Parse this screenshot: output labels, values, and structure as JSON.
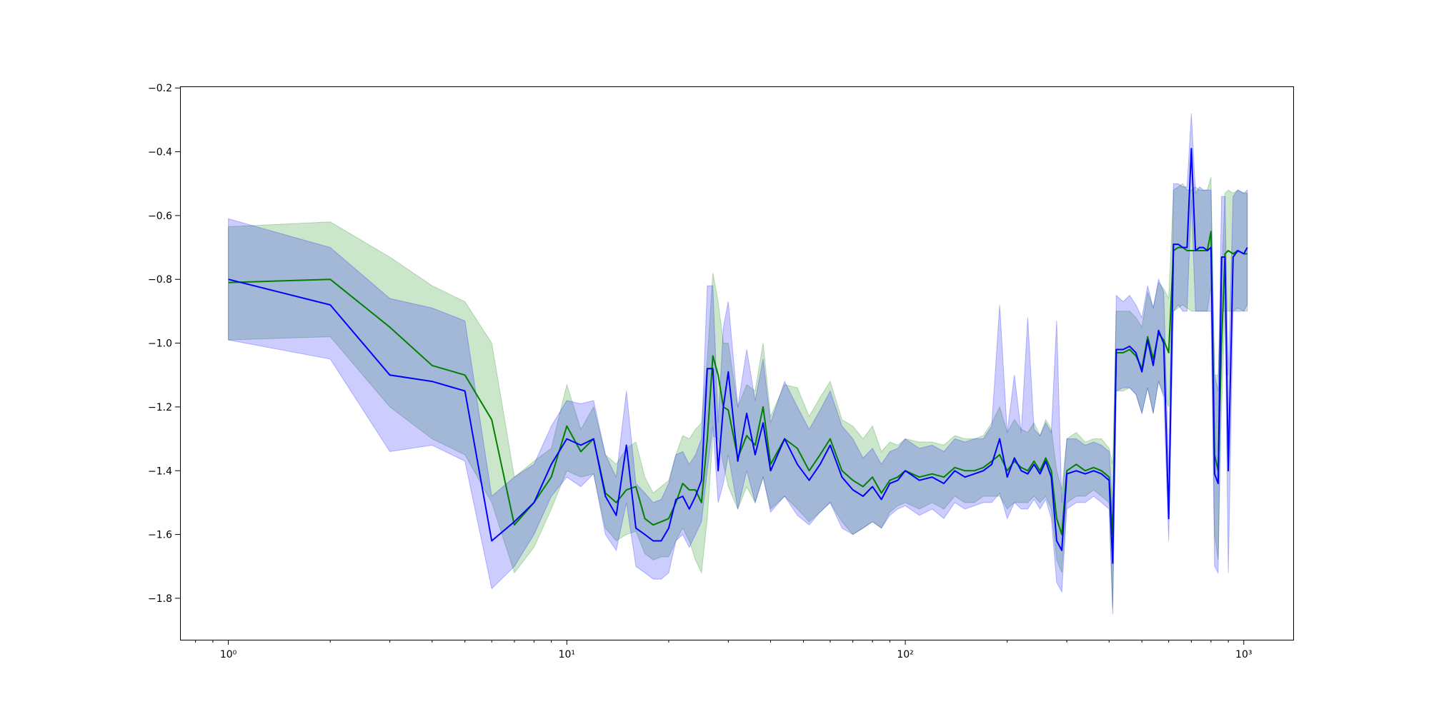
{
  "chart_data": {
    "type": "line",
    "title": "",
    "xlabel": "",
    "ylabel": "",
    "xscale": "log",
    "xlim": [
      0.72,
      1400
    ],
    "ylim": [
      -1.93,
      -0.195
    ],
    "grid": false,
    "x_ticks": [
      {
        "value": 1,
        "label": "10⁰"
      },
      {
        "value": 10,
        "label": "10¹"
      },
      {
        "value": 100,
        "label": "10²"
      },
      {
        "value": 1000,
        "label": "10³"
      }
    ],
    "y_ticks": [
      {
        "value": -0.2,
        "label": "−0.2"
      },
      {
        "value": -0.4,
        "label": "−0.4"
      },
      {
        "value": -0.6,
        "label": "−0.6"
      },
      {
        "value": -0.8,
        "label": "−0.8"
      },
      {
        "value": -1.0,
        "label": "−1.0"
      },
      {
        "value": -1.2,
        "label": "−1.2"
      },
      {
        "value": -1.4,
        "label": "−1.4"
      },
      {
        "value": -1.6,
        "label": "−1.6"
      },
      {
        "value": -1.8,
        "label": "−1.8"
      }
    ],
    "series": [
      {
        "color": "#008000",
        "band_color": "#008000",
        "band_opacity": 0.2,
        "x": [
          1,
          2,
          3,
          4,
          5,
          6,
          7,
          8,
          9,
          10,
          11,
          12,
          13,
          14,
          15,
          16,
          17,
          18,
          19,
          20,
          21,
          22,
          23,
          24,
          25,
          26,
          27,
          28,
          29,
          30,
          32,
          34,
          36,
          38,
          40,
          44,
          48,
          52,
          56,
          60,
          65,
          70,
          75,
          80,
          85,
          90,
          95,
          100,
          110,
          120,
          130,
          140,
          150,
          160,
          170,
          180,
          190,
          200,
          210,
          220,
          230,
          240,
          250,
          260,
          270,
          280,
          290,
          300,
          320,
          340,
          360,
          380,
          400,
          410,
          420,
          440,
          460,
          480,
          500,
          520,
          540,
          560,
          580,
          600,
          620,
          640,
          660,
          680,
          700,
          720,
          740,
          760,
          780,
          800,
          820,
          840,
          860,
          880,
          900,
          930,
          960,
          1000,
          1024
        ],
        "y": [
          -0.81,
          -0.8,
          -0.95,
          -1.07,
          -1.1,
          -1.24,
          -1.57,
          -1.5,
          -1.42,
          -1.26,
          -1.34,
          -1.3,
          -1.47,
          -1.5,
          -1.46,
          -1.45,
          -1.55,
          -1.57,
          -1.56,
          -1.55,
          -1.5,
          -1.44,
          -1.46,
          -1.46,
          -1.5,
          -1.3,
          -1.04,
          -1.1,
          -1.2,
          -1.21,
          -1.36,
          -1.29,
          -1.32,
          -1.2,
          -1.38,
          -1.3,
          -1.33,
          -1.4,
          -1.35,
          -1.3,
          -1.4,
          -1.43,
          -1.45,
          -1.42,
          -1.47,
          -1.43,
          -1.42,
          -1.4,
          -1.42,
          -1.41,
          -1.42,
          -1.39,
          -1.4,
          -1.4,
          -1.39,
          -1.37,
          -1.35,
          -1.4,
          -1.37,
          -1.39,
          -1.4,
          -1.37,
          -1.4,
          -1.36,
          -1.4,
          -1.55,
          -1.6,
          -1.4,
          -1.38,
          -1.4,
          -1.39,
          -1.4,
          -1.42,
          -1.6,
          -1.03,
          -1.03,
          -1.02,
          -1.04,
          -1.08,
          -0.98,
          -1.05,
          -0.97,
          -0.99,
          -1.03,
          -0.71,
          -0.7,
          -0.7,
          -0.71,
          -0.71,
          -0.71,
          -0.71,
          -0.71,
          -0.71,
          -0.65,
          -1.35,
          -1.4,
          -1.0,
          -0.72,
          -0.71,
          -0.72,
          -0.71,
          -0.72,
          -0.72
        ],
        "lower": [
          -0.99,
          -0.98,
          -1.2,
          -1.3,
          -1.35,
          -1.5,
          -1.72,
          -1.64,
          -1.52,
          -1.4,
          -1.42,
          -1.41,
          -1.58,
          -1.62,
          -1.6,
          -1.59,
          -1.66,
          -1.68,
          -1.67,
          -1.67,
          -1.62,
          -1.58,
          -1.62,
          -1.68,
          -1.72,
          -1.55,
          -1.29,
          -1.3,
          -1.38,
          -1.45,
          -1.52,
          -1.45,
          -1.5,
          -1.42,
          -1.52,
          -1.48,
          -1.52,
          -1.56,
          -1.53,
          -1.5,
          -1.56,
          -1.6,
          -1.58,
          -1.56,
          -1.58,
          -1.53,
          -1.51,
          -1.5,
          -1.52,
          -1.5,
          -1.52,
          -1.48,
          -1.5,
          -1.5,
          -1.48,
          -1.48,
          -1.48,
          -1.52,
          -1.5,
          -1.5,
          -1.5,
          -1.48,
          -1.5,
          -1.48,
          -1.52,
          -1.68,
          -1.72,
          -1.5,
          -1.48,
          -1.48,
          -1.46,
          -1.48,
          -1.5,
          -1.83,
          -1.15,
          -1.15,
          -1.14,
          -1.16,
          -1.22,
          -1.14,
          -1.22,
          -1.12,
          -1.16,
          -1.2,
          -0.9,
          -0.89,
          -0.88,
          -0.89,
          -0.9,
          -0.9,
          -0.9,
          -0.9,
          -0.9,
          -0.82,
          -1.6,
          -1.68,
          -1.2,
          -0.9,
          -0.9,
          -0.9,
          -0.89,
          -0.9,
          -0.9
        ],
        "upper": [
          -0.635,
          -0.62,
          -0.73,
          -0.82,
          -0.87,
          -1.0,
          -1.42,
          -1.37,
          -1.33,
          -1.13,
          -1.27,
          -1.2,
          -1.35,
          -1.38,
          -1.33,
          -1.31,
          -1.42,
          -1.47,
          -1.45,
          -1.43,
          -1.35,
          -1.29,
          -1.3,
          -1.27,
          -1.25,
          -1.05,
          -0.78,
          -0.87,
          -1.0,
          -1.0,
          -1.2,
          -1.13,
          -1.15,
          -1.0,
          -1.23,
          -1.13,
          -1.14,
          -1.23,
          -1.17,
          -1.12,
          -1.24,
          -1.26,
          -1.3,
          -1.26,
          -1.34,
          -1.31,
          -1.32,
          -1.3,
          -1.31,
          -1.31,
          -1.32,
          -1.29,
          -1.3,
          -1.3,
          -1.29,
          -1.25,
          -1.2,
          -1.28,
          -1.24,
          -1.27,
          -1.28,
          -1.25,
          -1.29,
          -1.24,
          -1.27,
          -1.4,
          -1.46,
          -1.3,
          -1.28,
          -1.31,
          -1.3,
          -1.3,
          -1.33,
          -1.38,
          -0.9,
          -0.9,
          -0.9,
          -0.92,
          -0.95,
          -0.84,
          -0.89,
          -0.81,
          -0.83,
          -0.86,
          -0.52,
          -0.51,
          -0.5,
          -0.52,
          -0.52,
          -0.51,
          -0.52,
          -0.52,
          -0.52,
          -0.48,
          -1.1,
          -1.1,
          -0.8,
          -0.53,
          -0.52,
          -0.53,
          -0.52,
          -0.53,
          -0.53
        ]
      },
      {
        "color": "#0000ff",
        "band_color": "#0000ff",
        "band_opacity": 0.2,
        "x": [
          1,
          2,
          3,
          4,
          5,
          6,
          7,
          8,
          9,
          10,
          11,
          12,
          13,
          14,
          15,
          16,
          17,
          18,
          19,
          20,
          21,
          22,
          23,
          24,
          25,
          26,
          27,
          28,
          29,
          30,
          32,
          34,
          36,
          38,
          40,
          44,
          48,
          52,
          56,
          60,
          65,
          70,
          75,
          80,
          85,
          90,
          95,
          100,
          110,
          120,
          130,
          140,
          150,
          160,
          170,
          180,
          190,
          200,
          210,
          220,
          230,
          240,
          250,
          260,
          270,
          280,
          290,
          300,
          320,
          340,
          360,
          380,
          400,
          410,
          420,
          440,
          460,
          480,
          500,
          520,
          540,
          560,
          580,
          600,
          620,
          640,
          660,
          680,
          700,
          720,
          740,
          760,
          780,
          800,
          820,
          840,
          860,
          880,
          900,
          930,
          960,
          1000,
          1024
        ],
        "y": [
          -0.8,
          -0.88,
          -1.1,
          -1.12,
          -1.15,
          -1.62,
          -1.56,
          -1.5,
          -1.38,
          -1.3,
          -1.32,
          -1.3,
          -1.48,
          -1.54,
          -1.32,
          -1.58,
          -1.6,
          -1.62,
          -1.62,
          -1.58,
          -1.49,
          -1.48,
          -1.52,
          -1.48,
          -1.43,
          -1.08,
          -1.08,
          -1.4,
          -1.2,
          -1.09,
          -1.37,
          -1.22,
          -1.35,
          -1.25,
          -1.4,
          -1.3,
          -1.38,
          -1.43,
          -1.38,
          -1.32,
          -1.42,
          -1.46,
          -1.48,
          -1.45,
          -1.49,
          -1.44,
          -1.43,
          -1.4,
          -1.43,
          -1.42,
          -1.44,
          -1.4,
          -1.42,
          -1.41,
          -1.4,
          -1.38,
          -1.3,
          -1.42,
          -1.36,
          -1.4,
          -1.41,
          -1.38,
          -1.41,
          -1.37,
          -1.42,
          -1.62,
          -1.65,
          -1.41,
          -1.4,
          -1.41,
          -1.4,
          -1.41,
          -1.43,
          -1.69,
          -1.02,
          -1.02,
          -1.01,
          -1.03,
          -1.09,
          -0.99,
          -1.07,
          -0.96,
          -1.0,
          -1.55,
          -0.69,
          -0.69,
          -0.7,
          -0.7,
          -0.39,
          -0.71,
          -0.7,
          -0.7,
          -0.71,
          -0.7,
          -1.41,
          -1.44,
          -0.73,
          -0.73,
          -1.4,
          -0.73,
          -0.71,
          -0.72,
          -0.7
        ],
        "lower": [
          -0.99,
          -1.05,
          -1.34,
          -1.32,
          -1.37,
          -1.77,
          -1.7,
          -1.6,
          -1.48,
          -1.42,
          -1.45,
          -1.41,
          -1.6,
          -1.65,
          -1.5,
          -1.7,
          -1.72,
          -1.74,
          -1.74,
          -1.72,
          -1.62,
          -1.6,
          -1.64,
          -1.6,
          -1.56,
          -1.4,
          -1.26,
          -1.5,
          -1.44,
          -1.35,
          -1.52,
          -1.4,
          -1.5,
          -1.42,
          -1.53,
          -1.48,
          -1.54,
          -1.57,
          -1.53,
          -1.5,
          -1.58,
          -1.6,
          -1.58,
          -1.56,
          -1.58,
          -1.54,
          -1.52,
          -1.51,
          -1.54,
          -1.52,
          -1.55,
          -1.5,
          -1.52,
          -1.51,
          -1.5,
          -1.5,
          -1.47,
          -1.55,
          -1.5,
          -1.52,
          -1.52,
          -1.49,
          -1.52,
          -1.49,
          -1.55,
          -1.75,
          -1.78,
          -1.52,
          -1.5,
          -1.5,
          -1.48,
          -1.5,
          -1.52,
          -1.85,
          -1.15,
          -1.14,
          -1.14,
          -1.16,
          -1.22,
          -1.14,
          -1.22,
          -1.12,
          -1.17,
          -1.62,
          -0.9,
          -0.88,
          -0.9,
          -0.9,
          -0.55,
          -0.9,
          -0.9,
          -0.9,
          -0.9,
          -0.9,
          -1.7,
          -1.72,
          -0.9,
          -0.9,
          -1.72,
          -0.9,
          -0.9,
          -0.9,
          -0.88
        ],
        "upper": [
          -0.61,
          -0.7,
          -0.86,
          -0.89,
          -0.93,
          -1.48,
          -1.42,
          -1.38,
          -1.26,
          -1.18,
          -1.19,
          -1.18,
          -1.35,
          -1.42,
          -1.15,
          -1.44,
          -1.47,
          -1.5,
          -1.49,
          -1.44,
          -1.35,
          -1.34,
          -1.38,
          -1.35,
          -1.3,
          -0.82,
          -0.82,
          -1.25,
          -0.95,
          -0.87,
          -1.2,
          -1.02,
          -1.18,
          -1.05,
          -1.25,
          -1.12,
          -1.2,
          -1.27,
          -1.21,
          -1.15,
          -1.26,
          -1.3,
          -1.36,
          -1.33,
          -1.38,
          -1.34,
          -1.33,
          -1.3,
          -1.33,
          -1.32,
          -1.34,
          -1.3,
          -1.31,
          -1.3,
          -1.3,
          -1.26,
          -0.88,
          -1.28,
          -1.1,
          -1.28,
          -0.92,
          -1.27,
          -1.29,
          -1.25,
          -1.28,
          -0.93,
          -1.5,
          -1.3,
          -1.3,
          -1.32,
          -1.31,
          -1.32,
          -1.34,
          -1.52,
          -0.85,
          -0.87,
          -0.85,
          -0.88,
          -0.92,
          -0.82,
          -0.89,
          -0.8,
          -0.84,
          -1.4,
          -0.5,
          -0.5,
          -0.51,
          -0.51,
          -0.28,
          -0.53,
          -0.51,
          -0.52,
          -0.52,
          -0.52,
          -1.1,
          -1.15,
          -0.54,
          -0.54,
          -1.1,
          -0.54,
          -0.52,
          -0.53,
          -0.52
        ]
      }
    ]
  }
}
